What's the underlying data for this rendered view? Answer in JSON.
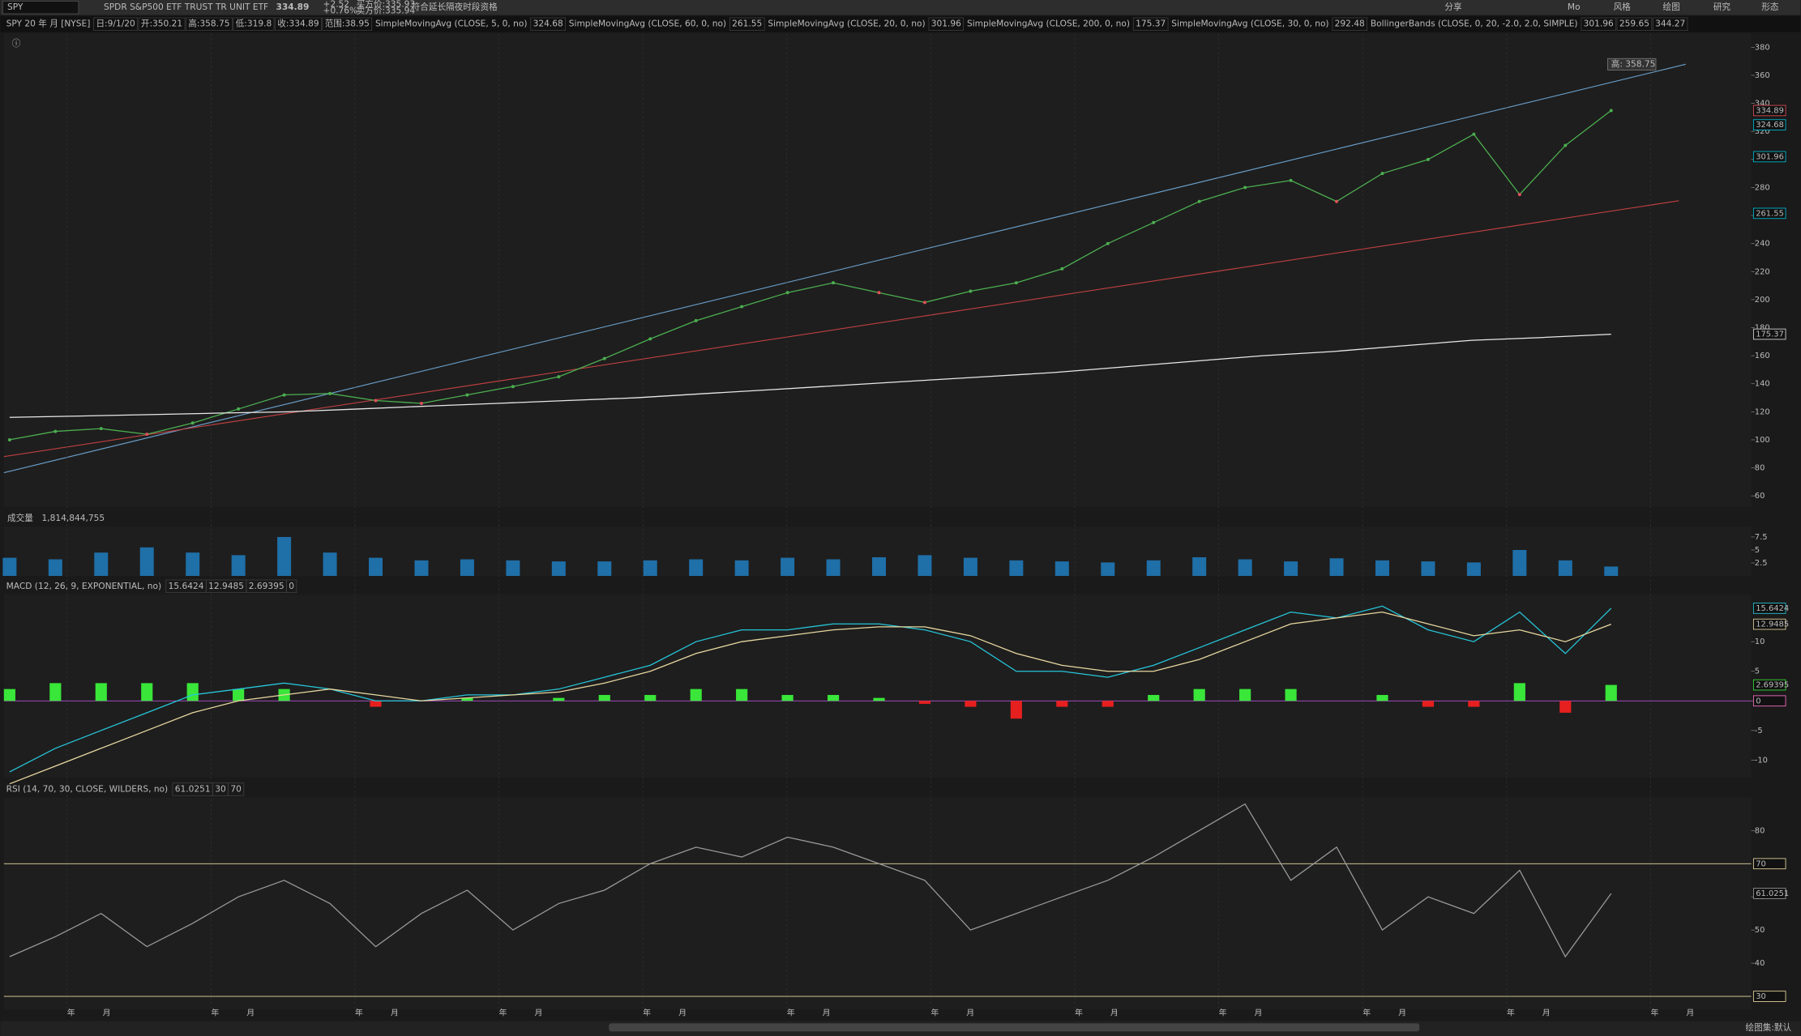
{
  "toolbar": {
    "symbol": "SPY",
    "description": "SPDR S&P500 ETF TRUST TR UNIT ETF",
    "last": "334.89",
    "change": "+2.52",
    "change_pct": "+0.76%",
    "bid": "买方价:335.93",
    "ask": "卖方价:335.94",
    "ext_hours": "符合延长隔夜时段资格",
    "buttons": [
      "分享",
      "Mo",
      "风格",
      "绘图",
      "研究",
      "形态"
    ]
  },
  "header": {
    "title": "SPY 20 年 月 [NYSE]",
    "fields": [
      "日:9/1/20",
      "开:350.21",
      "高:358.75",
      "低:319.8",
      "收:334.89",
      "范围:38.95"
    ],
    "studies": [
      {
        "label": "SimpleMovingAvg (CLOSE, 5, 0, no)",
        "values": [
          "324.68"
        ]
      },
      {
        "label": "SimpleMovingAvg (CLOSE, 60, 0, no)",
        "values": [
          "261.55"
        ]
      },
      {
        "label": "SimpleMovingAvg (CLOSE, 20, 0, no)",
        "values": [
          "301.96"
        ]
      },
      {
        "label": "SimpleMovingAvg (CLOSE, 200, 0, no)",
        "values": [
          "175.37"
        ]
      },
      {
        "label": "SimpleMovingAvg (CLOSE, 30, 0, no)",
        "values": [
          "292.48"
        ]
      },
      {
        "label": "BollingerBands (CLOSE, 0, 20, -2.0, 2.0, SIMPLE)",
        "values": [
          "301.96",
          "259.65",
          "344.27"
        ]
      }
    ]
  },
  "chart_data": [
    {
      "type": "line",
      "ylim": [
        52,
        390
      ],
      "yticks": [
        60,
        80,
        100,
        120,
        140,
        160,
        180,
        200,
        220,
        240,
        260,
        280,
        300,
        320,
        340,
        360,
        380
      ],
      "high_label": "高: 358.75",
      "price_labels": [
        {
          "value": 334.89,
          "color": "#e0505a"
        },
        {
          "value": 324.68,
          "color": "#00bcd4"
        },
        {
          "value": 301.96,
          "color": "#00bcd4"
        },
        {
          "value": 261.55,
          "color": "#00bcd4"
        },
        {
          "value": 175.37,
          "color": "#dddddd"
        }
      ],
      "series": [
        {
          "name": "CLOSE",
          "color": "#4caf50",
          "values": [
            100,
            106,
            108,
            104,
            112,
            122,
            132,
            133,
            128,
            126,
            132,
            138,
            145,
            158,
            172,
            185,
            195,
            205,
            212,
            205,
            198,
            206,
            212,
            222,
            240,
            255,
            270,
            280,
            285,
            270,
            290,
            300,
            318,
            275,
            310,
            334.89
          ]
        },
        {
          "name": "SimpleMovingAvg (CLOSE, 200, 0, no)",
          "color": "#e8e8e8",
          "values": [
            116,
            117,
            118,
            119,
            120,
            122,
            124,
            126,
            128,
            130,
            133,
            136,
            139,
            142,
            145,
            148,
            152,
            156,
            160,
            163,
            167,
            171,
            173,
            175.37
          ]
        }
      ]
    },
    {
      "type": "bar",
      "title": "成交量",
      "value_label": "1,814,844,755",
      "ylim": [
        0,
        9.5
      ],
      "yticks": [
        7.5,
        5,
        2.5
      ],
      "color": "#1f6fa8",
      "values": [
        3.5,
        3.2,
        4.5,
        5.5,
        4.5,
        4,
        7.5,
        4.5,
        3.5,
        3,
        3.2,
        3,
        2.8,
        2.8,
        3,
        3.2,
        3,
        3.5,
        3.2,
        3.6,
        4,
        3.5,
        3,
        2.8,
        2.6,
        3,
        3.6,
        3.2,
        2.8,
        3.4,
        3,
        2.8,
        2.6,
        5,
        3,
        1.814844755
      ]
    },
    {
      "type": "macd",
      "title": "MACD (12, 26, 9, EXPONENTIAL, no)",
      "value_labels": [
        "15.6424",
        "12.9485",
        "2.69395",
        "0"
      ],
      "ylim": [
        -13,
        18
      ],
      "yticks": [
        10,
        5,
        0,
        -5,
        -10
      ],
      "series": [
        {
          "name": "Value",
          "color": "#26c6da",
          "values": [
            -12,
            -8,
            -5,
            -2,
            1,
            2,
            3,
            2,
            0,
            0,
            1,
            1,
            2,
            4,
            6,
            10,
            12,
            12,
            13,
            13,
            12,
            10,
            5,
            5,
            4,
            6,
            9,
            12,
            15,
            14,
            16,
            12,
            10,
            15,
            8,
            15.6424
          ]
        },
        {
          "name": "Avg",
          "color": "#e8d8a0",
          "values": [
            -14,
            -11,
            -8,
            -5,
            -2,
            0,
            1,
            2,
            1,
            0,
            0.5,
            1,
            1.5,
            3,
            5,
            8,
            10,
            11,
            12,
            12.5,
            12.5,
            11,
            8,
            6,
            5,
            5,
            7,
            10,
            13,
            14,
            15,
            13,
            11,
            12,
            10,
            12.9485
          ]
        },
        {
          "name": "Diff",
          "color": "#39e639",
          "negative_color": "#e61f1f",
          "values": [
            2,
            3,
            3,
            3,
            3,
            2,
            2,
            0,
            -1,
            0,
            0.5,
            0,
            0.5,
            1,
            1,
            2,
            2,
            1,
            1,
            0.5,
            -0.5,
            -1,
            -3,
            -1,
            -1,
            1,
            2,
            2,
            2,
            0,
            1,
            -1,
            -1,
            3,
            -2,
            2.69395
          ]
        }
      ]
    },
    {
      "type": "line",
      "title": "RSI (14, 70, 30, CLOSE, WILDERS, no)",
      "value_label": "61.0251",
      "levels": [
        30,
        70
      ],
      "ylim": [
        26,
        90
      ],
      "yticks": [
        80,
        60,
        50,
        40
      ],
      "series": [
        {
          "name": "RSI",
          "color": "#9a9a9a",
          "values": [
            42,
            48,
            55,
            45,
            52,
            60,
            65,
            58,
            45,
            55,
            62,
            50,
            58,
            62,
            70,
            75,
            72,
            78,
            75,
            70,
            65,
            50,
            55,
            60,
            65,
            72,
            80,
            88,
            65,
            75,
            50,
            60,
            55,
            68,
            42,
            61.0251
          ]
        }
      ]
    }
  ],
  "x_axis_labels": [
    "年",
    "月",
    "年",
    "月",
    "年",
    "月",
    "年",
    "月",
    "年",
    "月",
    "年",
    "月",
    "年",
    "月",
    "年",
    "月",
    "年",
    "月",
    "年",
    "月",
    "年",
    "月",
    "年",
    "月"
  ],
  "footer": "绘图集:默认"
}
